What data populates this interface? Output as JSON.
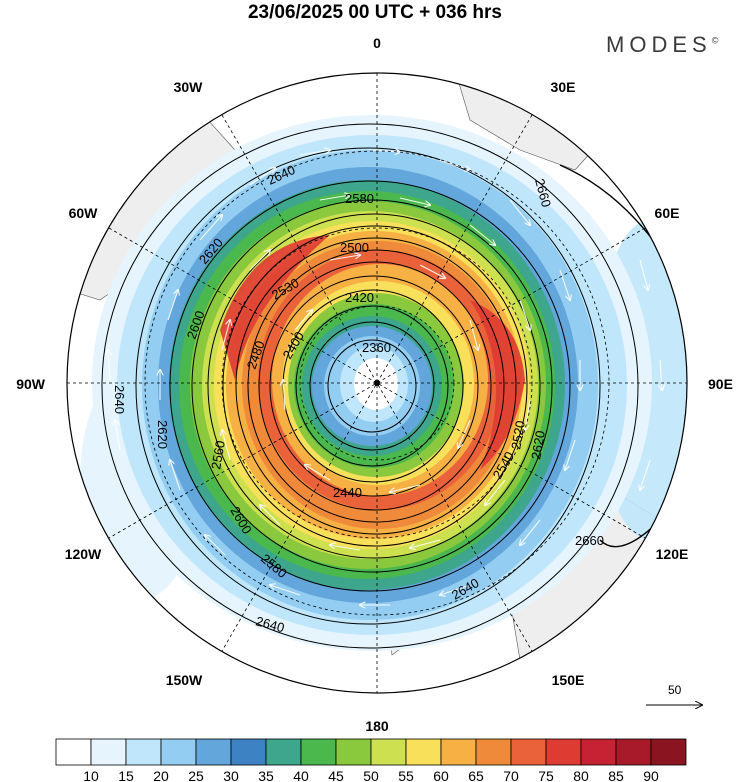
{
  "header": {
    "title": "23/06/2025  00 UTC  + 036 hrs",
    "brand": "MODES",
    "brand_mark": "©"
  },
  "map": {
    "projection": "south-polar-stereographic",
    "longitude_labels": [
      {
        "text": "0",
        "lon": 0
      },
      {
        "text": "30E",
        "lon": 30
      },
      {
        "text": "60E",
        "lon": 60
      },
      {
        "text": "90E",
        "lon": 90
      },
      {
        "text": "120E",
        "lon": 120
      },
      {
        "text": "150E",
        "lon": 150
      },
      {
        "text": "180",
        "lon": 180
      },
      {
        "text": "150W",
        "lon": -150
      },
      {
        "text": "120W",
        "lon": -120
      },
      {
        "text": "90W",
        "lon": -90
      },
      {
        "text": "60W",
        "lon": -60
      },
      {
        "text": "30W",
        "lon": -30
      }
    ],
    "contour_labels": [
      "2360",
      "2400",
      "2420",
      "2440",
      "2480",
      "2500",
      "2520",
      "2530",
      "2540",
      "2560",
      "2580",
      "2600",
      "2620",
      "2640",
      "2660"
    ],
    "wind_vector_reference": "50"
  },
  "colorbar": {
    "ticks": [
      "10",
      "15",
      "20",
      "25",
      "30",
      "35",
      "40",
      "45",
      "50",
      "55",
      "60",
      "65",
      "70",
      "75",
      "80",
      "85",
      "90"
    ],
    "colors": [
      "#ffffff",
      "#e6f5fd",
      "#bfe6fa",
      "#93cdf1",
      "#62a6dc",
      "#3d82c3",
      "#3da68c",
      "#4ab84c",
      "#8ac83e",
      "#cde04f",
      "#f8e05a",
      "#f6b044",
      "#ef8a3a",
      "#e9623a",
      "#de3b33",
      "#c72233",
      "#a81a2a",
      "#8a1420"
    ]
  }
}
